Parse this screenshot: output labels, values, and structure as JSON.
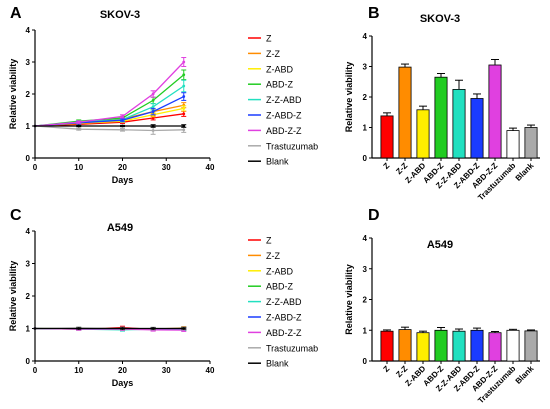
{
  "panels": [
    {
      "label": "A",
      "chart_data": {
        "type": "line",
        "title": "SKOV-3",
        "xlabel": "Days",
        "ylabel": "Relative viability",
        "xlim": [
          0,
          40
        ],
        "ylim": [
          0,
          4
        ],
        "xticks": [
          0,
          10,
          20,
          30,
          40
        ],
        "yticks": [
          0,
          1,
          2,
          3,
          4
        ],
        "x": [
          0,
          10,
          20,
          27,
          34
        ],
        "series": [
          {
            "name": "Z",
            "color": "#ff0000",
            "values": [
              1.0,
              1.05,
              1.12,
              1.25,
              1.38
            ],
            "err": [
              0,
              0.03,
              0.04,
              0.06,
              0.08
            ]
          },
          {
            "name": "Z-Z",
            "color": "#ff8c00",
            "values": [
              1.0,
              1.1,
              1.22,
              1.45,
              1.65
            ],
            "err": [
              0,
              0.03,
              0.04,
              0.06,
              0.08
            ]
          },
          {
            "name": "Z-ABD",
            "color": "#ffee00",
            "values": [
              1.0,
              1.08,
              1.15,
              1.35,
              1.55
            ],
            "err": [
              0,
              0.03,
              0.04,
              0.06,
              0.08
            ]
          },
          {
            "name": "ABD-Z",
            "color": "#22cc22",
            "values": [
              1.0,
              1.15,
              1.25,
              1.8,
              2.6
            ],
            "err": [
              0,
              0.04,
              0.05,
              0.1,
              0.15
            ]
          },
          {
            "name": "Z-Z-ABD",
            "color": "#22e0c0",
            "values": [
              1.0,
              1.12,
              1.2,
              1.6,
              2.25
            ],
            "err": [
              0,
              0.04,
              0.05,
              0.1,
              0.18
            ]
          },
          {
            "name": "Z-ABD-Z",
            "color": "#1a3cff",
            "values": [
              1.0,
              1.1,
              1.18,
              1.45,
              1.92
            ],
            "err": [
              0,
              0.04,
              0.05,
              0.1,
              0.12
            ]
          },
          {
            "name": "ABD-Z-Z",
            "color": "#e040e0",
            "values": [
              1.0,
              1.12,
              1.3,
              2.0,
              3.0
            ],
            "err": [
              0,
              0.04,
              0.05,
              0.1,
              0.14
            ]
          },
          {
            "name": "Trastuzumab",
            "color": "#aaaaaa",
            "values": [
              1.0,
              0.9,
              0.88,
              0.86,
              0.88
            ],
            "err": [
              0,
              0.03,
              0.04,
              0.12,
              0.08
            ]
          },
          {
            "name": "Blank",
            "color": "#000000",
            "values": [
              1.0,
              1.0,
              1.0,
              1.0,
              1.0
            ],
            "err": [
              0,
              0.02,
              0.02,
              0.04,
              0.04
            ]
          }
        ]
      }
    },
    {
      "label": "B",
      "chart_data": {
        "type": "bar",
        "title": "SKOV-3",
        "xlabel": "",
        "ylabel": "Relative viability",
        "ylim": [
          0,
          4
        ],
        "yticks": [
          0,
          1,
          2,
          3,
          4
        ],
        "categories": [
          "Z",
          "Z-Z",
          "Z-ABD",
          "ABD-Z",
          "Z-Z-ABD",
          "Z-ABD-Z",
          "ABD-Z-Z",
          "Trastuzumab",
          "Blank"
        ],
        "values": [
          1.38,
          2.98,
          1.58,
          2.65,
          2.25,
          1.95,
          3.05,
          0.9,
          1.0
        ],
        "err": [
          0.1,
          0.1,
          0.12,
          0.12,
          0.3,
          0.15,
          0.18,
          0.08,
          0.08
        ],
        "colors": [
          "#ff0000",
          "#ff8c00",
          "#ffee00",
          "#22cc22",
          "#22e0c0",
          "#1a3cff",
          "#e040e0",
          "#ffffff",
          "#aaaaaa"
        ]
      }
    },
    {
      "label": "C",
      "chart_data": {
        "type": "line",
        "title": "A549",
        "xlabel": "Days",
        "ylabel": "Relative viability",
        "xlim": [
          0,
          40
        ],
        "ylim": [
          0,
          4
        ],
        "xticks": [
          0,
          10,
          20,
          30,
          40
        ],
        "yticks": [
          0,
          1,
          2,
          3,
          4
        ],
        "x": [
          0,
          10,
          20,
          27,
          34
        ],
        "series": [
          {
            "name": "Z",
            "color": "#ff0000",
            "values": [
              1.0,
              0.98,
              1.03,
              0.97,
              0.98
            ],
            "err": [
              0,
              0.03,
              0.04,
              0.04,
              0.04
            ]
          },
          {
            "name": "Z-Z",
            "color": "#ff8c00",
            "values": [
              1.0,
              1.0,
              1.0,
              0.98,
              1.02
            ],
            "err": [
              0,
              0.03,
              0.04,
              0.04,
              0.04
            ]
          },
          {
            "name": "Z-ABD",
            "color": "#ffee00",
            "values": [
              1.0,
              0.99,
              0.98,
              0.97,
              0.99
            ],
            "err": [
              0,
              0.03,
              0.04,
              0.04,
              0.04
            ]
          },
          {
            "name": "ABD-Z",
            "color": "#22cc22",
            "values": [
              1.0,
              1.0,
              0.97,
              0.99,
              1.0
            ],
            "err": [
              0,
              0.03,
              0.04,
              0.04,
              0.04
            ]
          },
          {
            "name": "Z-Z-ABD",
            "color": "#22e0c0",
            "values": [
              1.0,
              0.98,
              0.96,
              0.98,
              0.97
            ],
            "err": [
              0,
              0.03,
              0.04,
              0.04,
              0.04
            ]
          },
          {
            "name": "Z-ABD-Z",
            "color": "#1a3cff",
            "values": [
              1.0,
              0.99,
              1.0,
              0.99,
              1.0
            ],
            "err": [
              0,
              0.03,
              0.04,
              0.04,
              0.04
            ]
          },
          {
            "name": "ABD-Z-Z",
            "color": "#e040e0",
            "values": [
              1.0,
              0.98,
              0.98,
              0.96,
              0.95
            ],
            "err": [
              0,
              0.03,
              0.04,
              0.04,
              0.04
            ]
          },
          {
            "name": "Trastuzumab",
            "color": "#aaaaaa",
            "values": [
              1.0,
              1.02,
              1.0,
              1.0,
              1.0
            ],
            "err": [
              0,
              0.03,
              0.04,
              0.04,
              0.04
            ]
          },
          {
            "name": "Blank",
            "color": "#000000",
            "values": [
              1.0,
              1.0,
              1.0,
              1.0,
              1.0
            ],
            "err": [
              0,
              0.02,
              0.02,
              0.02,
              0.02
            ]
          }
        ]
      }
    },
    {
      "label": "D",
      "chart_data": {
        "type": "bar",
        "title": "A549",
        "xlabel": "",
        "ylabel": "Relative viability",
        "ylim": [
          0,
          4
        ],
        "yticks": [
          0,
          1,
          2,
          3,
          4
        ],
        "categories": [
          "Z",
          "Z-Z",
          "Z-ABD",
          "ABD-Z",
          "Z-Z-ABD",
          "Z-ABD-Z",
          "ABD-Z-Z",
          "Trastuzumab",
          "Blank"
        ],
        "values": [
          0.97,
          1.02,
          0.92,
          1.0,
          0.97,
          1.0,
          0.92,
          1.0,
          0.98
        ],
        "err": [
          0.04,
          0.08,
          0.05,
          0.09,
          0.07,
          0.07,
          0.04,
          0.03,
          0.03
        ],
        "colors": [
          "#ff0000",
          "#ff8c00",
          "#ffee00",
          "#22cc22",
          "#22e0c0",
          "#1a3cff",
          "#e040e0",
          "#ffffff",
          "#aaaaaa"
        ]
      }
    }
  ]
}
